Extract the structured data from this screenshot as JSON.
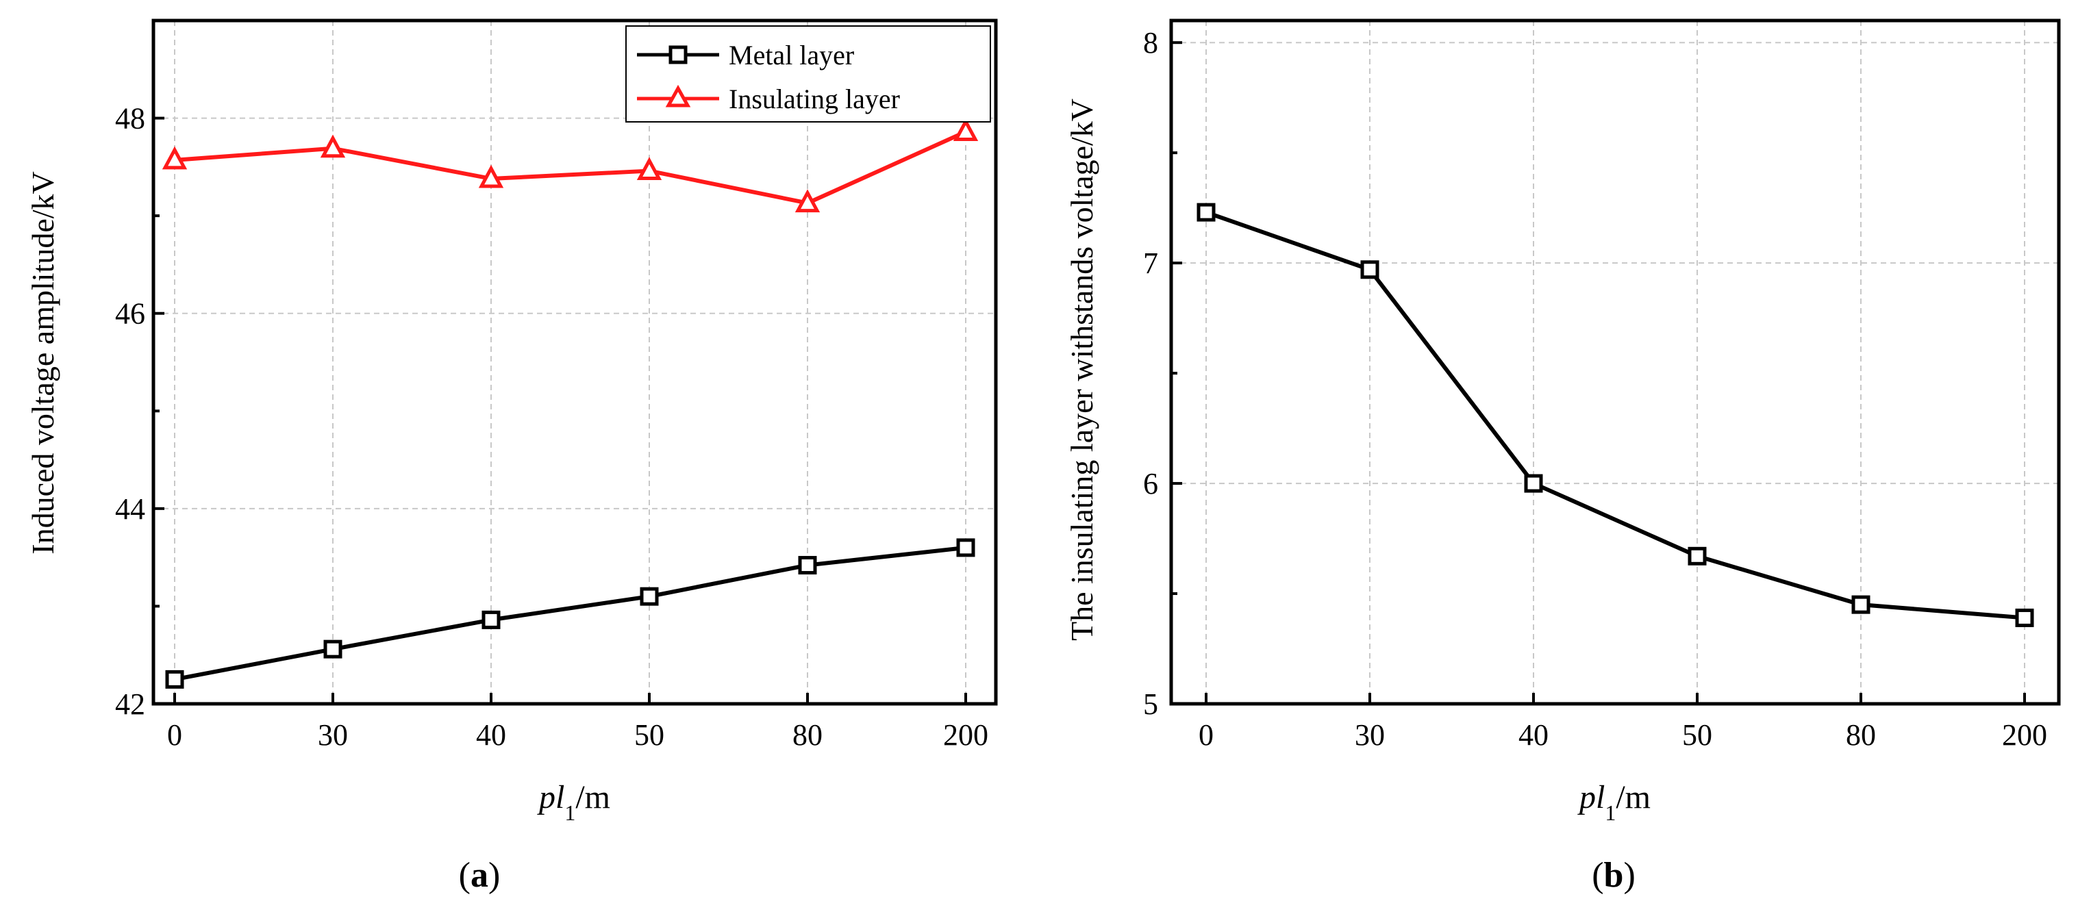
{
  "chart_data": [
    {
      "type": "line",
      "caption_letter": "a",
      "categories": [
        "0",
        "30",
        "40",
        "50",
        "80",
        "200"
      ],
      "ylim": [
        42,
        49
      ],
      "yticks": [
        42,
        44,
        46,
        48
      ],
      "ylabel": "Induced voltage amplitude/kV",
      "xlabel": {
        "italic": "pl",
        "sub": "1",
        "unit": "/m"
      },
      "grid": true,
      "legend_position": "top-right",
      "series": [
        {
          "name": "Metal layer",
          "color": "#000000",
          "marker": "square",
          "values": [
            42.25,
            42.56,
            42.86,
            43.1,
            43.42,
            43.6
          ]
        },
        {
          "name": "Insulating layer",
          "color": "#ff1a1a",
          "marker": "triangle",
          "values": [
            47.57,
            47.69,
            47.38,
            47.46,
            47.13,
            47.86
          ]
        }
      ]
    },
    {
      "type": "line",
      "caption_letter": "b",
      "categories": [
        "0",
        "30",
        "40",
        "50",
        "80",
        "200"
      ],
      "ylim": [
        5,
        8.1
      ],
      "yticks": [
        5,
        6,
        7,
        8
      ],
      "ylabel": "The insulating layer withstands voltage/kV",
      "xlabel": {
        "italic": "pl",
        "sub": "1",
        "unit": "/m"
      },
      "grid": true,
      "series": [
        {
          "name": "Insulating layer withstand voltage",
          "color": "#000000",
          "marker": "square",
          "values": [
            7.23,
            6.97,
            6.0,
            5.67,
            5.45,
            5.39
          ]
        }
      ]
    }
  ]
}
